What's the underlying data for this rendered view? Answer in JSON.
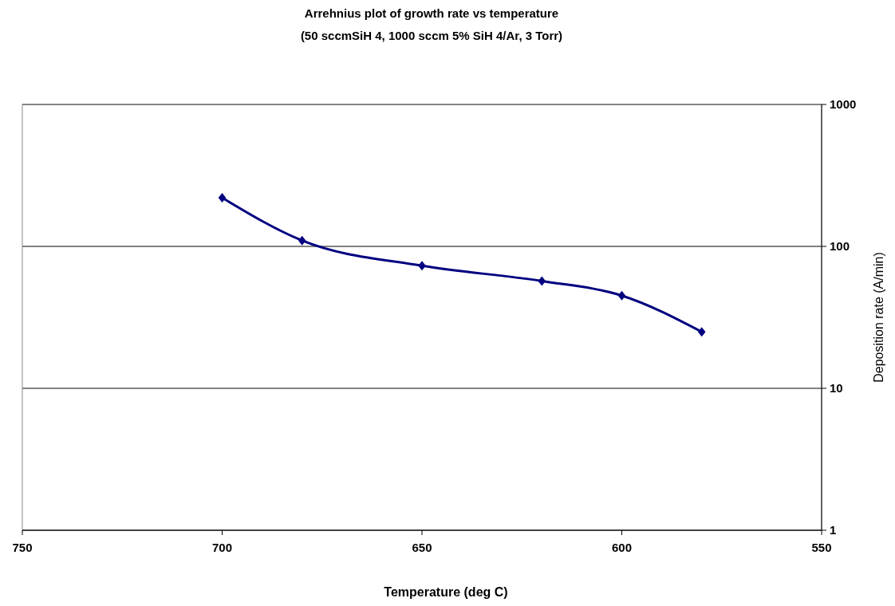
{
  "chart_data": {
    "type": "line",
    "title": "Arrehnius plot of growth rate vs temperature",
    "subtitle": "(50 sccmSiH 4, 1000 sccm 5% SiH 4/Ar, 3 Torr)",
    "xlabel": "Temperature (deg C)",
    "y2label": "Deposition rate (A/min)",
    "x": [
      700,
      680,
      650,
      620,
      600,
      580
    ],
    "series": [
      {
        "color": "#000080",
        "values": [
          220,
          110,
          73,
          57,
          45,
          25
        ],
        "axis": "y2"
      }
    ],
    "xlim": [
      750,
      550
    ],
    "xticks": [
      750,
      700,
      650,
      600,
      550
    ],
    "y2lim": [
      1,
      1000
    ],
    "y2ticks": [
      1,
      10,
      100,
      1000
    ],
    "log": "y2",
    "grid": "y",
    "marker": "diamond",
    "line_style": "solid"
  }
}
